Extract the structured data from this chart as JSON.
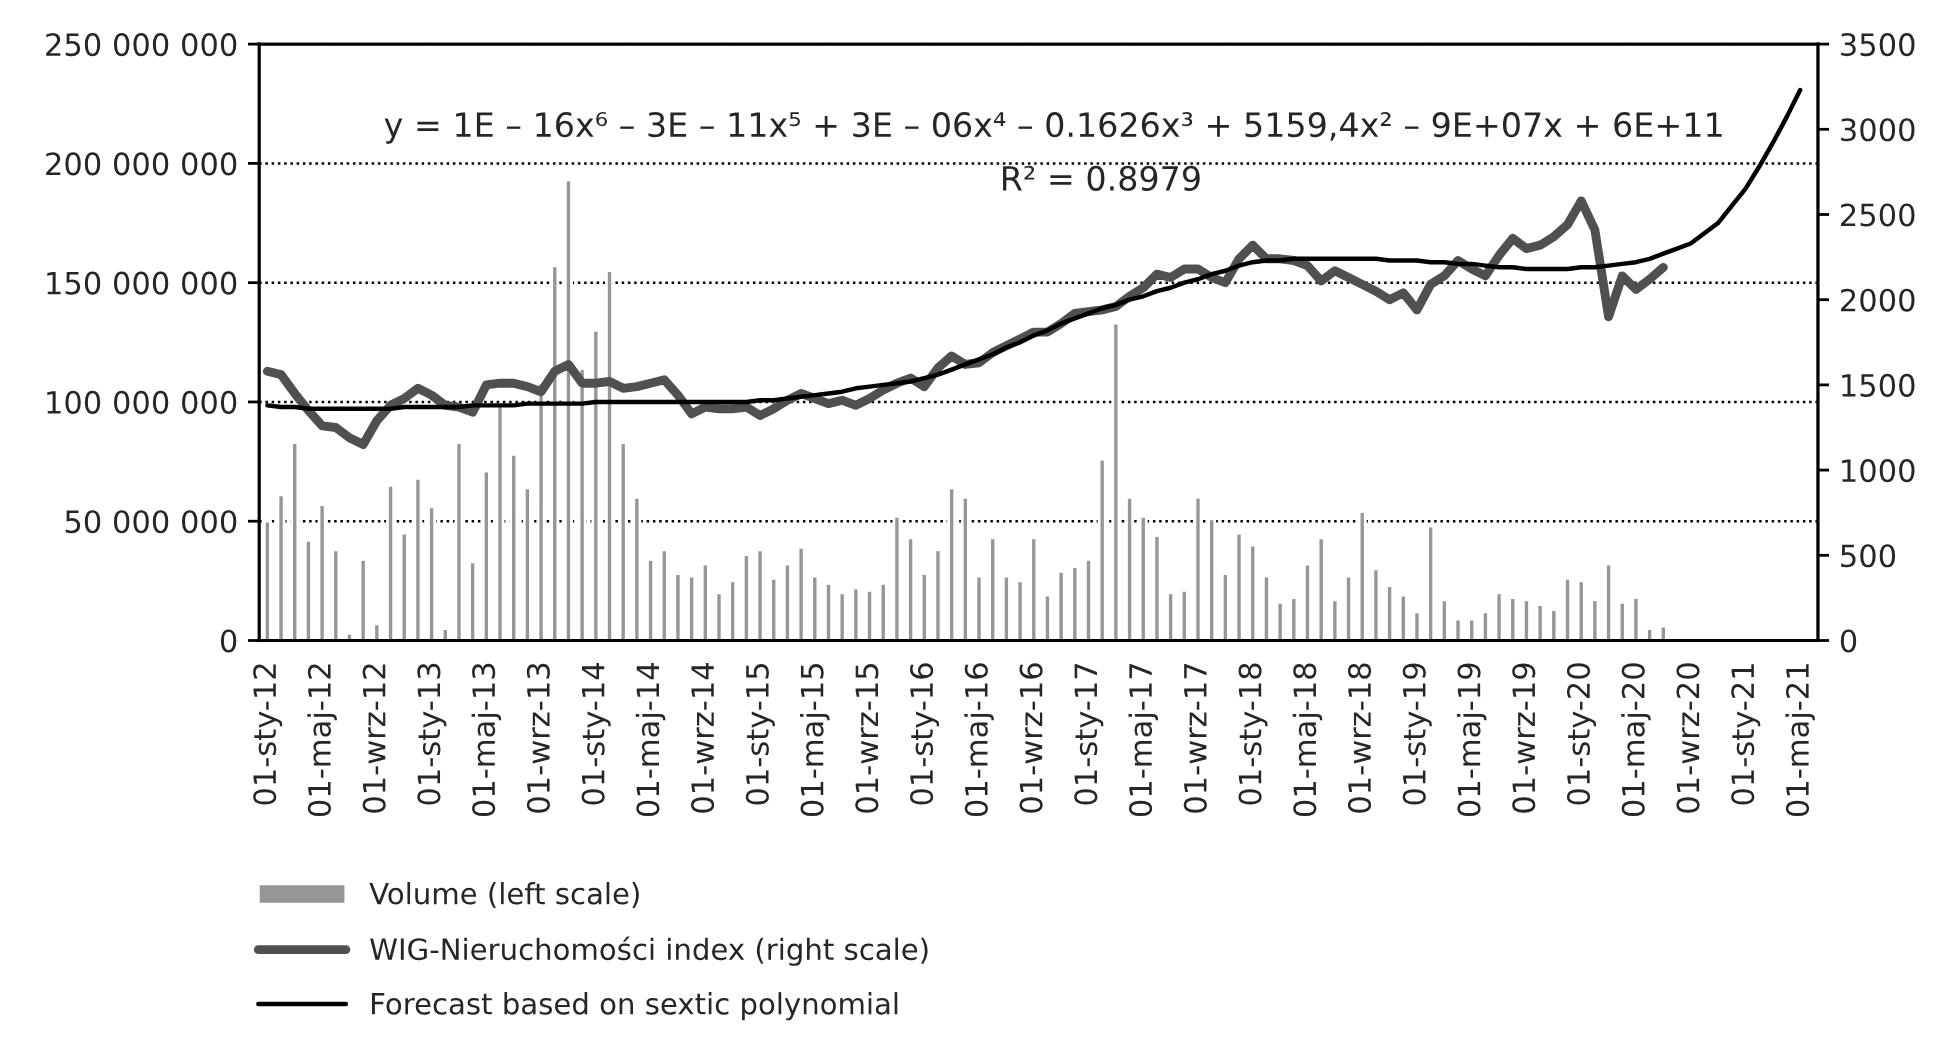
{
  "chart_data": {
    "type": "bar",
    "categories": [
      "01-sty-12",
      null,
      null,
      null,
      "01-maj-12",
      null,
      null,
      null,
      "01-wrz-12",
      null,
      null,
      null,
      "01-sty-13",
      null,
      null,
      null,
      "01-maj-13",
      null,
      null,
      null,
      "01-wrz-13",
      null,
      null,
      null,
      "01-sty-14",
      null,
      null,
      null,
      "01-maj-14",
      null,
      null,
      null,
      "01-wrz-14",
      null,
      null,
      null,
      "01-sty-15",
      null,
      null,
      null,
      "01-maj-15",
      null,
      null,
      null,
      "01-wrz-15",
      null,
      null,
      null,
      "01-sty-16",
      null,
      null,
      null,
      "01-maj-16",
      null,
      null,
      null,
      "01-wrz-16",
      null,
      null,
      null,
      "01-sty-17",
      null,
      null,
      null,
      "01-maj-17",
      null,
      null,
      null,
      "01-wrz-17",
      null,
      null,
      null,
      "01-sty-18",
      null,
      null,
      null,
      "01-maj-18",
      null,
      null,
      null,
      "01-wrz-18",
      null,
      null,
      null,
      "01-sty-19",
      null,
      null,
      null,
      "01-maj-19",
      null,
      null,
      null,
      "01-wrz-19",
      null,
      null,
      null,
      "01-sty-20",
      null,
      null,
      null,
      "01-maj-20",
      null,
      null,
      null,
      "01-wrz-20",
      null,
      null,
      null,
      "01-sty-21",
      null,
      null,
      null,
      "01-maj-21"
    ],
    "series": [
      {
        "name": "Volume (left scale)",
        "color": "#969696",
        "values": [
          50000000,
          61000000,
          83000000,
          42000000,
          57000000,
          38000000,
          3000000,
          34000000,
          7000000,
          65000000,
          45000000,
          68000000,
          56000000,
          5000000,
          83000000,
          33000000,
          71000000,
          99000000,
          78000000,
          64000000,
          108000000,
          157000000,
          193000000,
          114000000,
          130000000,
          155000000,
          83000000,
          60000000,
          34000000,
          38000000,
          28000000,
          27000000,
          32000000,
          20000000,
          25000000,
          36000000,
          38000000,
          26000000,
          32000000,
          39000000,
          27000000,
          24000000,
          20000000,
          22000000,
          21000000,
          24000000,
          52000000,
          43000000,
          28000000,
          38000000,
          64000000,
          60000000,
          27000000,
          43000000,
          27000000,
          25000000,
          43000000,
          19000000,
          29000000,
          31000000,
          34000000,
          76000000,
          133000000,
          60000000,
          52000000,
          44000000,
          20000000,
          21000000,
          60000000,
          51000000,
          28000000,
          45000000,
          40000000,
          27000000,
          16000000,
          18000000,
          32000000,
          43000000,
          17000000,
          27000000,
          54000000,
          30000000,
          23000000,
          19000000,
          12000000,
          48000000,
          17000000,
          9000000,
          9000000,
          12000000,
          20000000,
          18000000,
          17000000,
          15000000,
          13000000,
          26000000,
          25000000,
          17000000,
          32000000,
          16000000,
          18000000,
          5000000,
          6000000,
          null,
          null,
          null,
          null,
          null,
          null,
          null,
          null,
          null,
          null
        ]
      },
      {
        "name": "WIG-Nieruchomości index (right scale)",
        "type": "line",
        "axis": "y2",
        "color": "#505050",
        "values": [
          1580,
          1560,
          1450,
          1350,
          1260,
          1250,
          1190,
          1150,
          1290,
          1380,
          1420,
          1480,
          1440,
          1380,
          1370,
          1340,
          1500,
          1510,
          1510,
          1490,
          1460,
          1580,
          1620,
          1510,
          1510,
          1520,
          1480,
          1490,
          1510,
          1530,
          1440,
          1330,
          1370,
          1360,
          1360,
          1370,
          1320,
          1360,
          1410,
          1450,
          1420,
          1390,
          1410,
          1380,
          1420,
          1470,
          1510,
          1540,
          1490,
          1600,
          1670,
          1620,
          1630,
          1690,
          1730,
          1770,
          1810,
          1810,
          1860,
          1920,
          1930,
          1940,
          1960,
          2020,
          2070,
          2150,
          2130,
          2180,
          2180,
          2130,
          2100,
          2240,
          2320,
          2240,
          2240,
          2230,
          2200,
          2110,
          2170,
          2130,
          2090,
          2050,
          2000,
          2040,
          1940,
          2090,
          2140,
          2230,
          2180,
          2140,
          2260,
          2360,
          2300,
          2320,
          2370,
          2440,
          2580,
          2410,
          1900,
          2140,
          2060,
          2120,
          2190,
          null,
          null,
          null,
          null,
          null,
          null,
          null,
          null,
          null,
          null
        ]
      },
      {
        "name": "Forecast based on sextic polynomial",
        "type": "line",
        "axis": "y2",
        "color": "#000000",
        "values": [
          1380,
          1370,
          1370,
          1360,
          1360,
          1360,
          1360,
          1360,
          1360,
          1360,
          1370,
          1370,
          1370,
          1370,
          1370,
          1380,
          1380,
          1380,
          1380,
          1390,
          1390,
          1390,
          1390,
          1390,
          1400,
          1400,
          1400,
          1400,
          1400,
          1400,
          1400,
          1400,
          1400,
          1400,
          1400,
          1400,
          1410,
          1410,
          1420,
          1430,
          1440,
          1450,
          1460,
          1480,
          1490,
          1500,
          1510,
          1520,
          1540,
          1560,
          1590,
          1620,
          1650,
          1680,
          1720,
          1750,
          1790,
          1820,
          1860,
          1890,
          1920,
          1950,
          1970,
          2000,
          2020,
          2050,
          2070,
          2100,
          2120,
          2150,
          2170,
          2200,
          2220,
          2230,
          2230,
          2240,
          2240,
          2240,
          2240,
          2240,
          2240,
          2240,
          2230,
          2230,
          2230,
          2220,
          2220,
          2210,
          2210,
          2200,
          2190,
          2190,
          2180,
          2180,
          2180,
          2180,
          2190,
          2190,
          2200,
          2210,
          2220,
          2240,
          2270,
          2300,
          2330,
          2390,
          2450,
          2550,
          2650,
          2780,
          2920,
          3070,
          3230
        ]
      }
    ],
    "ylim": [
      0,
      250000000
    ],
    "yticks": [
      {
        "value": 0,
        "label": "0"
      },
      {
        "value": 50000000,
        "label": "50 000 000"
      },
      {
        "value": 100000000,
        "label": "100 000 000"
      },
      {
        "value": 150000000,
        "label": "150 000 000"
      },
      {
        "value": 200000000,
        "label": "200 000 000"
      },
      {
        "value": 250000000,
        "label": "250 000 000"
      }
    ],
    "y2lim": [
      0,
      3500
    ],
    "y2ticks": [
      0,
      500,
      1000,
      1500,
      2000,
      2500,
      3000,
      3500
    ],
    "annotations": [
      "y = 1E – 16x⁶ – 3E – 11x⁵ + 3E – 06x⁴ – 0.1626x³ + 5159,4x² – 9E+07x + 6E+11",
      "R² = 0.8979"
    ],
    "grid": "y",
    "legend": "bottom"
  }
}
